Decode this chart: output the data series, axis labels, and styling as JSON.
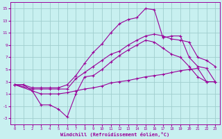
{
  "xlabel": "Windchill (Refroidissement éolien,°C)",
  "bg_color": "#c8f0f0",
  "grid_color": "#a0cece",
  "line_color": "#990099",
  "ylim": [
    -4,
    16
  ],
  "xlim": [
    -0.5,
    23.5
  ],
  "yticks": [
    -3,
    -1,
    1,
    3,
    5,
    7,
    9,
    11,
    13,
    15
  ],
  "xticks": [
    0,
    1,
    2,
    3,
    4,
    5,
    6,
    7,
    8,
    9,
    10,
    11,
    12,
    13,
    14,
    15,
    16,
    17,
    18,
    19,
    20,
    21,
    22,
    23
  ],
  "line1_x": [
    0,
    1,
    2,
    3,
    4,
    5,
    6,
    7,
    8,
    9,
    10,
    11,
    12,
    13,
    14,
    15,
    16,
    17,
    18,
    19,
    20,
    21,
    22,
    23
  ],
  "line1_y": [
    2.5,
    2.5,
    2.0,
    2.0,
    2.0,
    2.0,
    2.5,
    4.0,
    6.0,
    7.8,
    9.2,
    11.0,
    12.5,
    13.2,
    13.5,
    15.0,
    14.8,
    10.2,
    10.5,
    10.5,
    7.0,
    5.5,
    5.2,
    3.0
  ],
  "line2_x": [
    0,
    2,
    3,
    4,
    5,
    6,
    7,
    8,
    9,
    10,
    11,
    12,
    13,
    14,
    15,
    16,
    17,
    18,
    19,
    20,
    21,
    22,
    23
  ],
  "line2_y": [
    2.5,
    1.8,
    1.8,
    1.8,
    1.8,
    1.8,
    3.5,
    4.5,
    5.5,
    6.5,
    7.5,
    8.0,
    9.0,
    9.8,
    10.5,
    10.8,
    10.5,
    10.0,
    9.8,
    9.5,
    7.0,
    6.5,
    5.5
  ],
  "line3_x": [
    0,
    1,
    2,
    3,
    4,
    5,
    6,
    7,
    8,
    9,
    10,
    11,
    12,
    13,
    14,
    15,
    16,
    17,
    18,
    19,
    20,
    21,
    22,
    23
  ],
  "line3_y": [
    2.5,
    2.5,
    1.5,
    -0.8,
    -0.8,
    -1.5,
    -2.8,
    1.0,
    3.8,
    4.0,
    5.0,
    6.2,
    7.3,
    8.2,
    9.0,
    9.8,
    9.5,
    8.5,
    7.5,
    7.0,
    5.5,
    3.8,
    3.0,
    3.0
  ],
  "line4_x": [
    0,
    2,
    3,
    4,
    5,
    6,
    7,
    8,
    9,
    10,
    11,
    12,
    13,
    14,
    15,
    16,
    17,
    18,
    19,
    20,
    21,
    22,
    23
  ],
  "line4_y": [
    2.5,
    1.5,
    1.0,
    1.0,
    1.0,
    1.2,
    1.5,
    1.8,
    2.0,
    2.3,
    2.8,
    3.0,
    3.2,
    3.5,
    3.8,
    4.0,
    4.2,
    4.5,
    4.8,
    5.0,
    5.2,
    3.0,
    3.0
  ]
}
